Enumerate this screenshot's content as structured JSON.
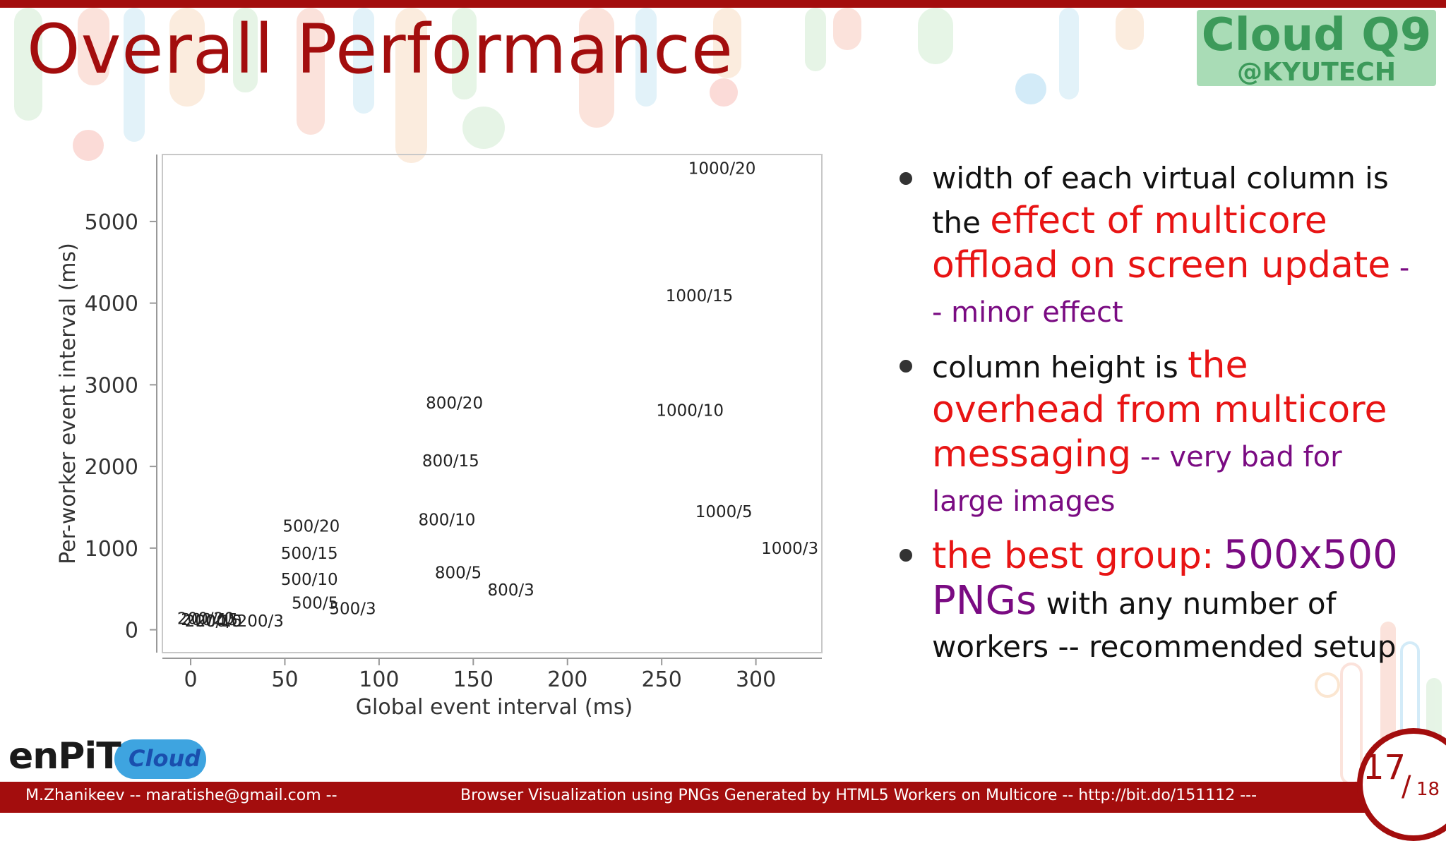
{
  "slide": {
    "title": "Overall Performance",
    "logo": {
      "main": "Cloud Q9",
      "sub": "@KYUTECH"
    }
  },
  "chart_data": {
    "type": "scatter",
    "xlabel": "Global event interval (ms)",
    "ylabel": "Per-worker event interval (ms)",
    "xlim": [
      -15,
      335
    ],
    "ylim": [
      -280,
      5820
    ],
    "xticks": [
      0,
      50,
      100,
      150,
      200,
      250,
      300
    ],
    "yticks": [
      0,
      1000,
      2000,
      3000,
      4000,
      5000
    ],
    "grid": false,
    "points": [
      {
        "label": "1000/20",
        "x": 282,
        "y": 5650
      },
      {
        "label": "1000/15",
        "x": 270,
        "y": 4090
      },
      {
        "label": "1000/10",
        "x": 265,
        "y": 2690
      },
      {
        "label": "1000/5",
        "x": 283,
        "y": 1450
      },
      {
        "label": "1000/3",
        "x": 318,
        "y": 1000
      },
      {
        "label": "800/20",
        "x": 140,
        "y": 2780
      },
      {
        "label": "800/15",
        "x": 138,
        "y": 2070
      },
      {
        "label": "800/10",
        "x": 136,
        "y": 1350
      },
      {
        "label": "800/5",
        "x": 142,
        "y": 700
      },
      {
        "label": "800/3",
        "x": 170,
        "y": 490
      },
      {
        "label": "500/20",
        "x": 64,
        "y": 1270
      },
      {
        "label": "500/15",
        "x": 63,
        "y": 940
      },
      {
        "label": "500/10",
        "x": 63,
        "y": 620
      },
      {
        "label": "500/5",
        "x": 66,
        "y": 330
      },
      {
        "label": "500/3",
        "x": 86,
        "y": 260
      },
      {
        "label": "200/20",
        "x": 8,
        "y": 140
      },
      {
        "label": "200/15",
        "x": 10,
        "y": 125
      },
      {
        "label": "200/10",
        "x": 12,
        "y": 110
      },
      {
        "label": "200/5",
        "x": 15,
        "y": 110
      },
      {
        "label": "200/3",
        "x": 37,
        "y": 110
      }
    ]
  },
  "bullets": [
    {
      "lead": "width of each virtual column is the ",
      "highlight": "effect of multicore offload on screen update",
      "tail": " -- minor effect"
    },
    {
      "lead": "column height is ",
      "highlight": "the overhead from multicore messaging",
      "tail": " -- very bad for large images"
    },
    {
      "highlight": "the best group:",
      "accent": "500x500 PNGs",
      "tail": " with any number of workers -- recommended setup"
    }
  ],
  "branding": {
    "enpit": "enPiT",
    "cloud": "Cloud"
  },
  "footer": {
    "author": "M.Zhanikeev -- maratishe@gmail.com --",
    "subtitle": "Browser Visualization using PNGs Generated by HTML5 Workers on Multicore -- http://bit.do/151112 ---"
  },
  "page": {
    "current": "17",
    "total": "18"
  },
  "colors": {
    "brand_red": "#a30d0d",
    "highlight_red": "#e81414",
    "accent_purple": "#7a0b82",
    "logo_green": "#a9dcb6"
  }
}
